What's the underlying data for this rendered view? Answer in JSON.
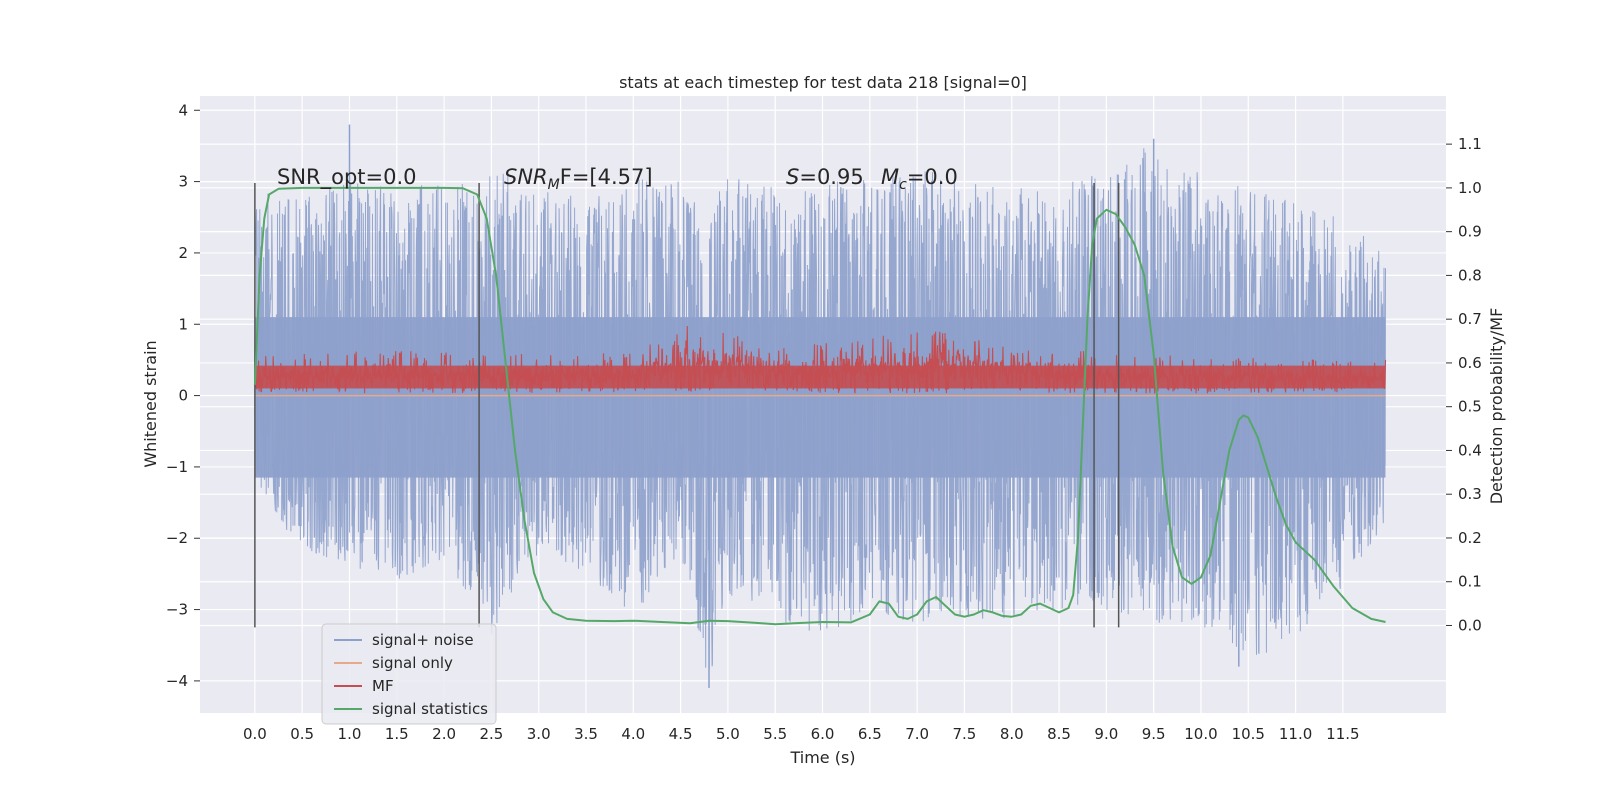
{
  "chart_data": {
    "type": "line",
    "title": "stats at each timestep for test data 218 [signal=0]",
    "xlabel": "Time (s)",
    "ylabel": "Whitened strain",
    "y2label": "Detection probability/MF",
    "xlim": [
      -0.58,
      12.59
    ],
    "ylim": [
      -4.45,
      4.2
    ],
    "y2lim": [
      -0.2,
      1.21
    ],
    "x_ticks": [
      "0.0",
      "0.5",
      "1.0",
      "1.5",
      "2.0",
      "2.5",
      "3.0",
      "3.5",
      "4.0",
      "4.5",
      "5.0",
      "5.5",
      "6.0",
      "6.5",
      "7.0",
      "7.5",
      "8.0",
      "8.5",
      "9.0",
      "9.5",
      "10.0",
      "10.5",
      "11.0",
      "11.5"
    ],
    "y_ticks": [
      "4",
      "3",
      "2",
      "1",
      "0",
      "−1",
      "−2",
      "−3",
      "−4"
    ],
    "y2_ticks": [
      "0.0",
      "0.1",
      "0.2",
      "0.3",
      "0.4",
      "0.5",
      "0.6",
      "0.7",
      "0.8",
      "0.9",
      "1.0",
      "1.1"
    ],
    "grid": true,
    "legend_placement": "lower-left",
    "annotations": {
      "snr_opt": "SNR_opt=0.0",
      "snr_mf_base": "SNR",
      "snr_mf_sub": "M",
      "snr_mf_rest": "F=[4.57]",
      "s_sym": "S",
      "s_val": "=0.95",
      "mc_sym": "M",
      "mc_sub": "c",
      "mc_val": "=0.0"
    },
    "vertical_markers": [
      0.0,
      2.37,
      8.87,
      9.13
    ],
    "series": [
      {
        "name": "signal+ noise",
        "color": "#8da0cb",
        "axis": "left",
        "t_start": 0.0,
        "t_end": 11.95,
        "envelope": [
          [
            0.0,
            -1.3,
            2.9
          ],
          [
            0.5,
            -2.2,
            2.8
          ],
          [
            1.0,
            -2.4,
            3.0
          ],
          [
            1.5,
            -2.6,
            2.9
          ],
          [
            2.0,
            -2.3,
            3.0
          ],
          [
            2.37,
            -3.0,
            3.0
          ],
          [
            2.5,
            -3.4,
            3.2
          ],
          [
            3.0,
            -2.2,
            2.9
          ],
          [
            3.5,
            -2.5,
            2.8
          ],
          [
            4.0,
            -3.1,
            3.1
          ],
          [
            4.5,
            -2.2,
            3.0
          ],
          [
            4.8,
            -4.1,
            2.6
          ],
          [
            5.0,
            -2.8,
            3.1
          ],
          [
            5.5,
            -3.2,
            3.0
          ],
          [
            6.0,
            -3.4,
            3.0
          ],
          [
            6.5,
            -3.0,
            3.1
          ],
          [
            7.0,
            -3.2,
            3.2
          ],
          [
            7.5,
            -3.1,
            3.0
          ],
          [
            8.0,
            -3.2,
            2.9
          ],
          [
            8.5,
            -3.0,
            3.0
          ],
          [
            9.0,
            -3.0,
            3.2
          ],
          [
            9.5,
            -3.2,
            3.6
          ],
          [
            10.0,
            -3.3,
            3.1
          ],
          [
            10.5,
            -3.8,
            2.9
          ],
          [
            11.0,
            -3.4,
            2.7
          ],
          [
            11.5,
            -2.7,
            2.5
          ],
          [
            11.95,
            -1.8,
            2.0
          ]
        ],
        "peaks": [
          [
            1.0,
            3.8
          ],
          [
            9.5,
            3.6
          ],
          [
            4.8,
            -4.1
          ],
          [
            10.4,
            -3.8
          ]
        ]
      },
      {
        "name": "signal only",
        "color": "#e8a88a",
        "axis": "left",
        "x": [
          0.0,
          11.95
        ],
        "y": [
          0.0,
          0.0
        ]
      },
      {
        "name": "MF",
        "color": "#c44e52",
        "axis": "left",
        "t_start": 0.0,
        "t_end": 11.95,
        "baseline_low": 0.05,
        "envelope": [
          [
            0.0,
            0.05,
            0.55
          ],
          [
            1.5,
            0.03,
            0.65
          ],
          [
            2.5,
            0.03,
            0.6
          ],
          [
            4.0,
            0.05,
            0.6
          ],
          [
            4.6,
            0.05,
            1.0
          ],
          [
            5.5,
            0.03,
            0.7
          ],
          [
            6.0,
            0.03,
            0.75
          ],
          [
            7.4,
            0.03,
            0.95
          ],
          [
            8.0,
            0.05,
            0.7
          ],
          [
            9.0,
            0.03,
            0.6
          ],
          [
            10.0,
            0.03,
            0.55
          ],
          [
            11.95,
            0.05,
            0.5
          ]
        ]
      },
      {
        "name": "signal statistics",
        "color": "#55a868",
        "axis": "right",
        "x": [
          0.0,
          0.05,
          0.1,
          0.15,
          0.25,
          0.5,
          1.0,
          1.5,
          2.0,
          2.2,
          2.35,
          2.45,
          2.55,
          2.65,
          2.75,
          2.85,
          2.95,
          3.05,
          3.15,
          3.3,
          3.5,
          3.8,
          4.0,
          4.3,
          4.6,
          4.8,
          5.0,
          5.3,
          5.5,
          5.7,
          6.0,
          6.3,
          6.5,
          6.6,
          6.7,
          6.8,
          6.9,
          7.0,
          7.1,
          7.2,
          7.3,
          7.4,
          7.5,
          7.6,
          7.7,
          7.8,
          7.9,
          8.0,
          8.1,
          8.2,
          8.3,
          8.4,
          8.5,
          8.6,
          8.65,
          8.7,
          8.75,
          8.8,
          8.85,
          8.9,
          9.0,
          9.1,
          9.2,
          9.3,
          9.4,
          9.5,
          9.6,
          9.7,
          9.8,
          9.9,
          10.0,
          10.1,
          10.2,
          10.3,
          10.4,
          10.45,
          10.5,
          10.6,
          10.7,
          10.8,
          10.9,
          11.0,
          11.2,
          11.4,
          11.6,
          11.8,
          11.95
        ],
        "y": [
          0.55,
          0.8,
          0.93,
          0.985,
          0.998,
          1.0,
          1.0,
          1.0,
          1.0,
          0.999,
          0.985,
          0.93,
          0.8,
          0.6,
          0.4,
          0.24,
          0.12,
          0.06,
          0.03,
          0.015,
          0.011,
          0.01,
          0.011,
          0.008,
          0.005,
          0.011,
          0.01,
          0.006,
          0.003,
          0.005,
          0.008,
          0.007,
          0.025,
          0.055,
          0.05,
          0.02,
          0.015,
          0.025,
          0.055,
          0.065,
          0.045,
          0.025,
          0.02,
          0.025,
          0.035,
          0.03,
          0.022,
          0.02,
          0.025,
          0.045,
          0.05,
          0.04,
          0.03,
          0.04,
          0.07,
          0.2,
          0.45,
          0.7,
          0.87,
          0.93,
          0.95,
          0.94,
          0.91,
          0.87,
          0.8,
          0.62,
          0.35,
          0.18,
          0.11,
          0.095,
          0.11,
          0.16,
          0.28,
          0.4,
          0.47,
          0.48,
          0.475,
          0.43,
          0.36,
          0.29,
          0.23,
          0.19,
          0.15,
          0.09,
          0.04,
          0.015,
          0.008
        ]
      }
    ]
  }
}
